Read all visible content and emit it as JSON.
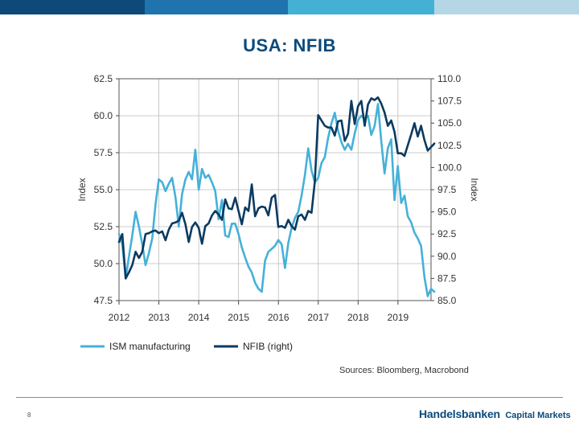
{
  "header": {
    "bar_colors": [
      "#0d4a7a",
      "#1f74ad",
      "#44b0d6",
      "#b5d7e5"
    ]
  },
  "slide": {
    "title": "USA: NFIB",
    "source": "Sources: Bloomberg, Macrobond",
    "page_number": "8",
    "logo": {
      "bank": "Handelsbanken",
      "unit": "Capital Markets"
    }
  },
  "chart_data": {
    "type": "line",
    "title": "",
    "xlabel": "",
    "ylabel_left": "Index",
    "ylabel_right": "Index",
    "grid": true,
    "legend_position": "bottom-left",
    "x_start": 2012.0,
    "x_step": 0.0833,
    "xlim": [
      2012.0,
      2019.83
    ],
    "x_ticks": [
      2012,
      2013,
      2014,
      2015,
      2016,
      2017,
      2018,
      2019
    ],
    "x_tick_labels": [
      "2012",
      "2013",
      "2014",
      "2015",
      "2016",
      "2017",
      "2018",
      "2019"
    ],
    "ylim_left": [
      47.5,
      62.5
    ],
    "y_ticks_left": [
      47.5,
      50.0,
      52.5,
      55.0,
      57.5,
      60.0,
      62.5
    ],
    "y_tick_labels_left": [
      "47.5",
      "50.0",
      "52.5",
      "55.0",
      "57.5",
      "60.0",
      "62.5"
    ],
    "ylim_right": [
      85.0,
      110.0
    ],
    "y_ticks_right": [
      85.0,
      87.5,
      90.0,
      92.5,
      95.0,
      97.5,
      100.0,
      102.5,
      105.0,
      107.5,
      110.0
    ],
    "y_tick_labels_right": [
      "85.0",
      "87.5",
      "90.0",
      "92.5",
      "95.0",
      "97.5",
      "100.0",
      "102.5",
      "105.0",
      "107.5",
      "110.0"
    ],
    "series": [
      {
        "name": "ISM manufacturing",
        "axis": "left",
        "color": "#45b1d8",
        "values": [
          52.0,
          51.3,
          49.0,
          50.5,
          51.9,
          53.5,
          52.5,
          51.3,
          49.9,
          50.7,
          51.7,
          54.0,
          55.7,
          55.5,
          54.9,
          55.4,
          55.8,
          54.5,
          52.5,
          54.7,
          55.7,
          56.2,
          55.7,
          57.7,
          55.0,
          56.4,
          55.8,
          56.0,
          55.5,
          54.9,
          53.0,
          54.3,
          51.9,
          51.8,
          52.7,
          52.7,
          52.0,
          51.1,
          50.4,
          49.8,
          49.4,
          48.7,
          48.3,
          48.1,
          50.2,
          50.8,
          51.0,
          51.2,
          51.6,
          51.3,
          49.7,
          51.4,
          52.4,
          53.1,
          53.5,
          54.6,
          56.0,
          57.8,
          56.3,
          55.5,
          55.8,
          56.8,
          57.2,
          58.5,
          59.5,
          60.2,
          59.0,
          58.2,
          57.7,
          58.1,
          57.7,
          58.8,
          59.7,
          60.0,
          59.8,
          60.0,
          58.7,
          59.3,
          60.8,
          58.3,
          56.1,
          57.8,
          58.4,
          54.3,
          56.6,
          54.1,
          54.6,
          53.2,
          52.8,
          52.1,
          51.7,
          51.2,
          49.1,
          47.8,
          48.3,
          48.1
        ]
      },
      {
        "name": "NFIB  (right)",
        "axis": "right",
        "color": "#0b3a61",
        "values": [
          91.6,
          92.5,
          87.5,
          88.2,
          89.0,
          90.5,
          89.8,
          90.5,
          92.5,
          92.6,
          92.8,
          92.9,
          92.6,
          92.8,
          91.8,
          93.0,
          93.7,
          93.8,
          94.0,
          94.9,
          93.6,
          91.6,
          93.3,
          93.8,
          93.2,
          91.4,
          93.4,
          93.7,
          94.6,
          95.1,
          94.7,
          94.1,
          96.4,
          95.4,
          95.3,
          96.6,
          95.1,
          93.6,
          95.5,
          95.1,
          98.1,
          94.5,
          95.4,
          95.6,
          95.5,
          94.6,
          96.6,
          96.9,
          93.3,
          93.4,
          93.2,
          94.1,
          93.4,
          93.0,
          94.5,
          94.7,
          94.1,
          95.1,
          94.9,
          98.4,
          105.9,
          105.3,
          104.7,
          104.5,
          104.5,
          103.6,
          105.2,
          105.3,
          103.0,
          103.8,
          107.5,
          104.9,
          106.9,
          107.5,
          104.7,
          107.1,
          107.8,
          107.6,
          107.9,
          107.2,
          106.2,
          104.7,
          105.3,
          104.0,
          101.6,
          101.6,
          101.3,
          102.5,
          103.7,
          105.0,
          103.5,
          104.7,
          103.1,
          101.9,
          102.3,
          102.7
        ]
      }
    ]
  }
}
